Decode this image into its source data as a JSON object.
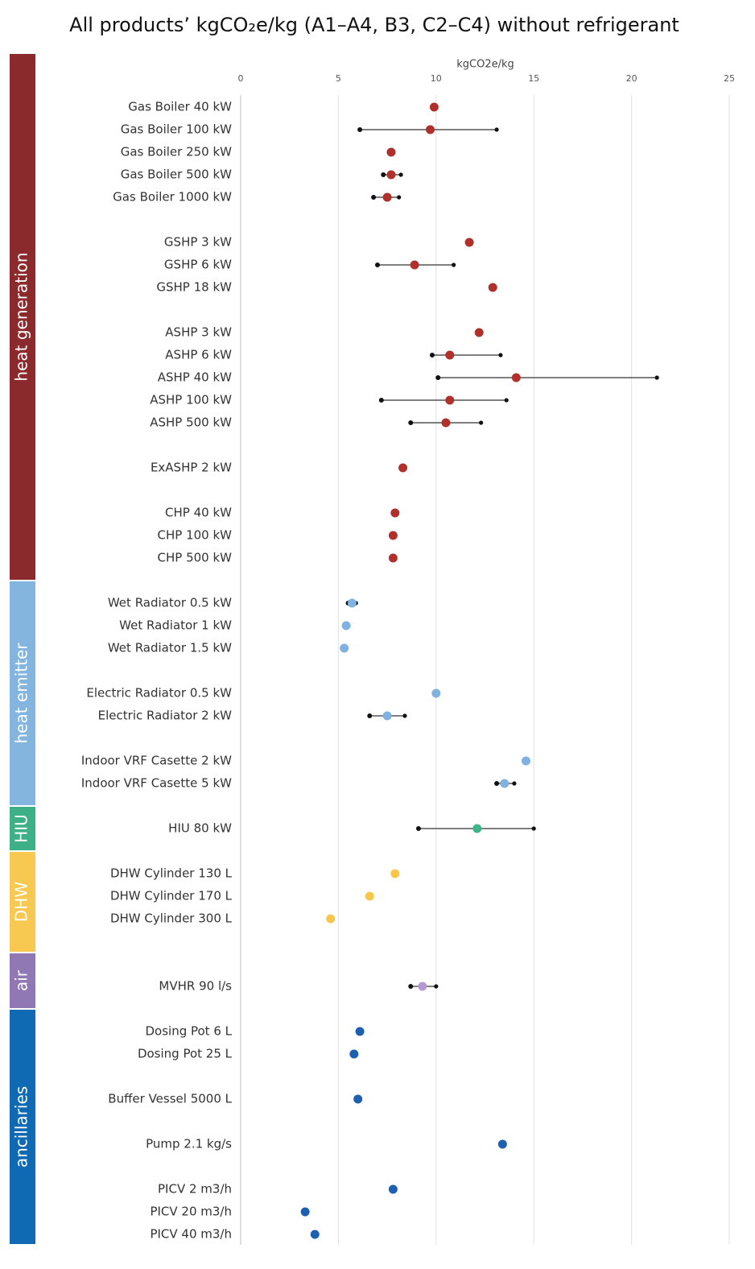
{
  "chart_data": {
    "type": "dot_range",
    "title": "All products’ kgCO₂e/kg (A1–A4, B3, C2–C4) without refrigerant",
    "x_label": "kgCO2e/kg",
    "xlim": [
      0,
      25
    ],
    "xticks": [
      0,
      5,
      10,
      15,
      20,
      25
    ],
    "grid": true,
    "range_color": "#555555",
    "range_end_color": "#111111",
    "groups": [
      {
        "name": "heat generation",
        "color": "#8b2a2c",
        "dot_color": "#b0312b",
        "categories": [
          "Gas Boiler 40 kW",
          "Gas Boiler 100 kW",
          "Gas Boiler 250 kW",
          "Gas Boiler 500 kW",
          "Gas Boiler 1000 kW",
          null,
          "GSHP 3 kW",
          "GSHP 6 kW",
          "GSHP 18 kW",
          null,
          "ASHP 3 kW",
          "ASHP 6 kW",
          "ASHP 40 kW",
          "ASHP 100 kW",
          "ASHP 500 kW",
          null,
          "ExASHP 2 kW",
          null,
          "CHP 40 kW",
          "CHP 100 kW",
          "CHP 500 kW",
          null
        ],
        "values": [
          9.9,
          9.7,
          7.7,
          7.7,
          7.5,
          null,
          11.7,
          8.9,
          12.9,
          null,
          12.2,
          10.7,
          14.1,
          10.7,
          10.5,
          null,
          8.3,
          null,
          7.9,
          7.8,
          7.8,
          null
        ],
        "min": [
          null,
          6.1,
          null,
          7.3,
          6.8,
          null,
          null,
          7.0,
          null,
          null,
          null,
          9.8,
          10.1,
          7.2,
          8.7,
          null,
          null,
          null,
          null,
          null,
          null,
          null
        ],
        "max": [
          null,
          13.1,
          null,
          8.2,
          8.1,
          null,
          null,
          10.9,
          null,
          null,
          null,
          13.3,
          21.3,
          13.6,
          12.3,
          null,
          null,
          null,
          null,
          null,
          null,
          null
        ]
      },
      {
        "name": "heat emitter",
        "color": "#84b5de",
        "dot_color": "#7fb2e0",
        "categories": [
          "Wet Radiator 0.5 kW",
          "Wet Radiator 1 kW",
          "Wet Radiator 1.5 kW",
          null,
          "Electric Radiator 0.5 kW",
          "Electric Radiator 2 kW",
          null,
          "Indoor VRF Casette 2 kW",
          "Indoor VRF Casette 5 kW",
          null
        ],
        "values": [
          5.7,
          5.4,
          5.3,
          null,
          10.0,
          7.5,
          null,
          14.6,
          13.5,
          null
        ],
        "min": [
          5.5,
          null,
          null,
          null,
          null,
          6.6,
          null,
          null,
          13.1,
          null
        ],
        "max": [
          5.9,
          null,
          null,
          null,
          null,
          8.4,
          null,
          null,
          14.0,
          null
        ]
      },
      {
        "name": "HIU",
        "color": "#3db088",
        "dot_color": "#3db587",
        "categories": [
          "HIU 80 kW",
          null
        ],
        "values": [
          12.1,
          null
        ],
        "min": [
          9.1,
          null
        ],
        "max": [
          15.0,
          null
        ]
      },
      {
        "name": "DHW",
        "color": "#f8c950",
        "dot_color": "#f8c64a",
        "categories": [
          "DHW Cylinder 130 L",
          "DHW Cylinder 170 L",
          "DHW Cylinder 300 L",
          null,
          null
        ],
        "values": [
          7.9,
          6.6,
          4.6,
          null,
          null
        ],
        "min": [
          null,
          null,
          null,
          null,
          null
        ],
        "max": [
          null,
          null,
          null,
          null,
          null
        ]
      },
      {
        "name": "air",
        "color": "#8f78b4",
        "dot_color": "#b49ad0",
        "categories": [
          "MVHR 90 l/s",
          null
        ],
        "values": [
          9.3,
          null
        ],
        "min": [
          8.7,
          null
        ],
        "max": [
          10.0,
          null
        ]
      },
      {
        "name": "ancillaries",
        "color": "#0f69b3",
        "dot_color": "#1d5fb0",
        "categories": [
          "Dosing Pot 6 L",
          "Dosing Pot 25 L",
          null,
          "Buffer Vessel 5000 L",
          null,
          "Pump 2.1 kg/s",
          null,
          "PICV 2 m3/h",
          "PICV 20 m3/h",
          "PICV 40 m3/h"
        ],
        "values": [
          6.1,
          5.8,
          null,
          6.0,
          null,
          13.4,
          null,
          7.8,
          3.3,
          3.8
        ],
        "min": [
          null,
          null,
          null,
          null,
          null,
          null,
          null,
          7.7,
          null,
          null
        ],
        "max": [
          null,
          null,
          null,
          null,
          null,
          null,
          null,
          7.9,
          null,
          null
        ]
      }
    ]
  }
}
